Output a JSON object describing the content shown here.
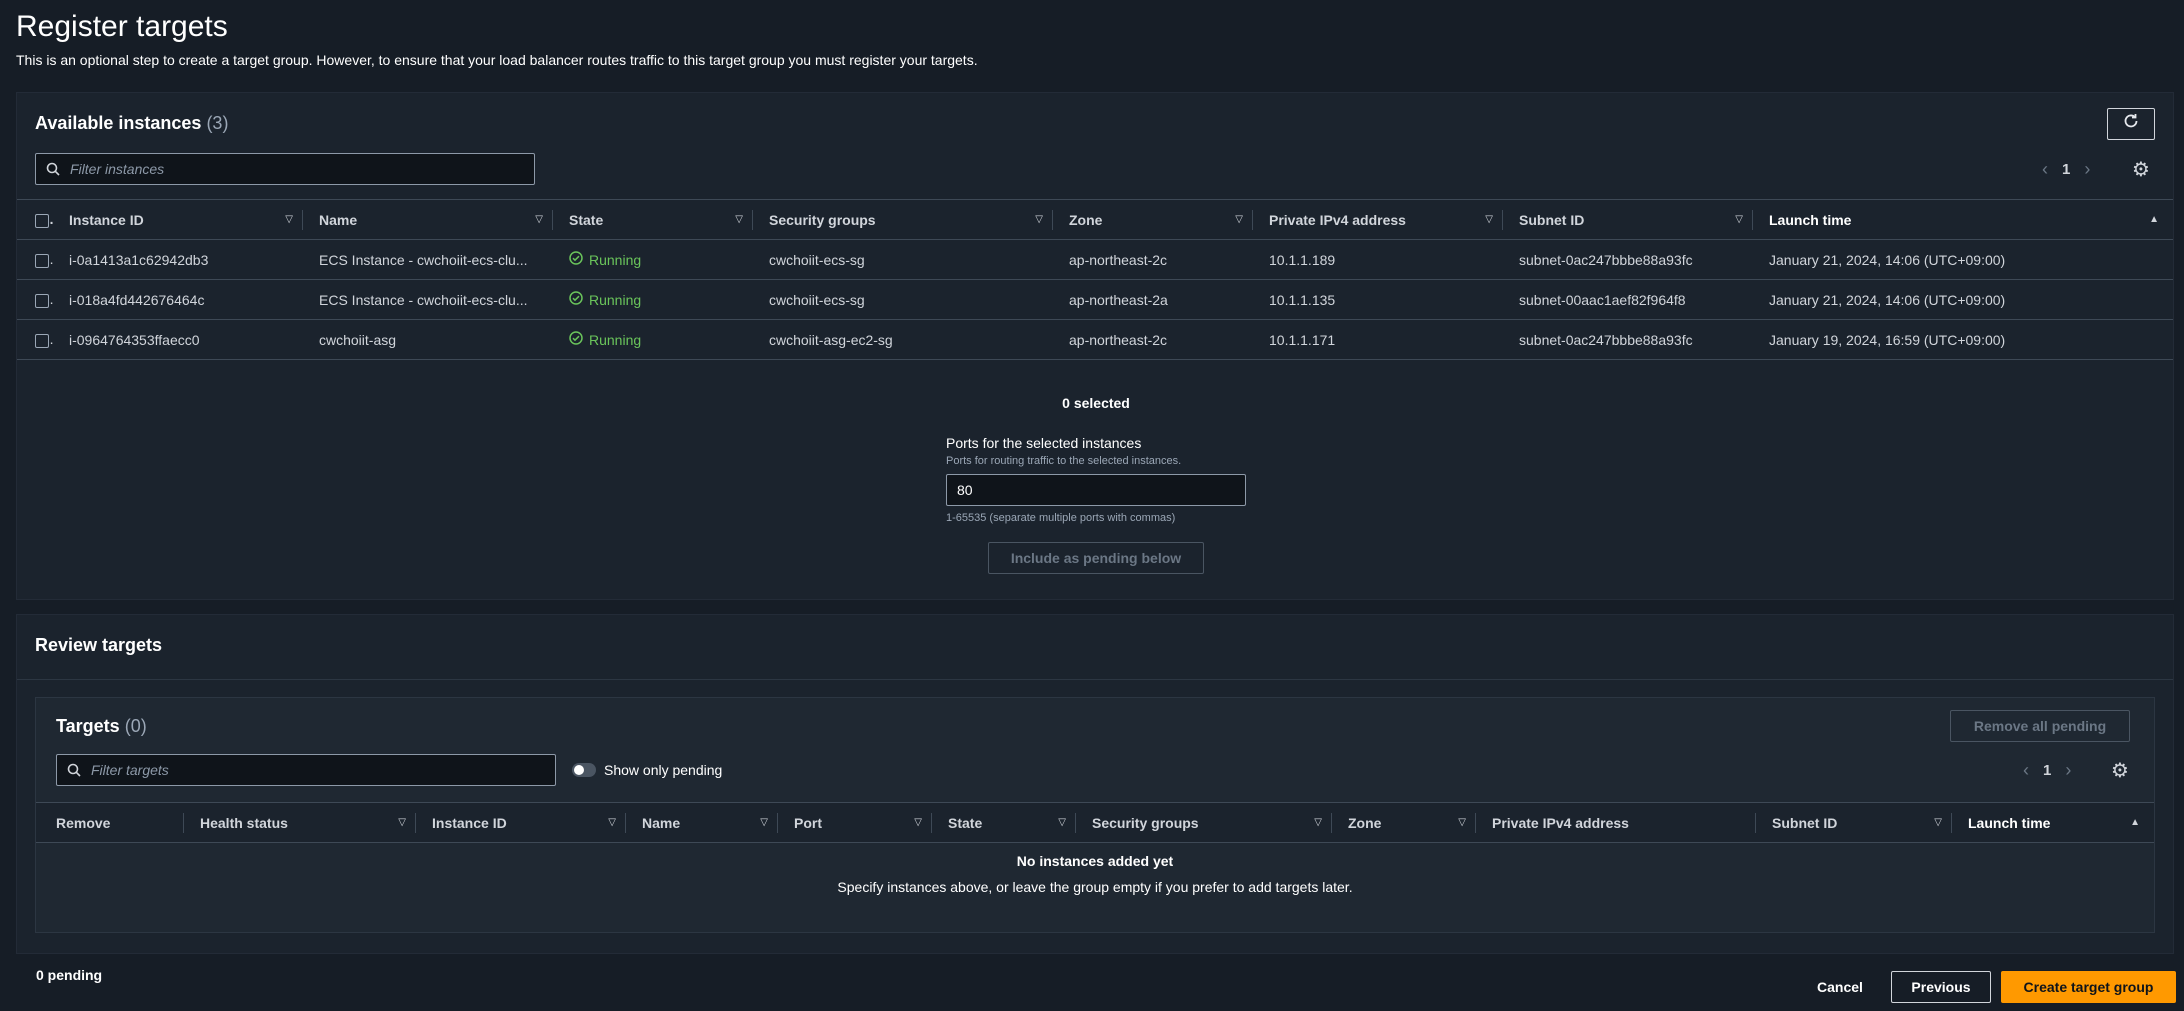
{
  "page": {
    "title": "Register targets",
    "description": "This is an optional step to create a target group. However, to ensure that your load balancer routes traffic to this target group you must register your targets."
  },
  "available": {
    "title": "Available instances",
    "count": "(3)",
    "filter_placeholder": "Filter instances",
    "page_number": "1",
    "columns": [
      "Instance ID",
      "Name",
      "State",
      "Security groups",
      "Zone",
      "Private IPv4 address",
      "Subnet ID",
      "Launch time"
    ],
    "rows": [
      {
        "id": "i-0a1413a1c62942db3",
        "name": "ECS Instance - cwchoiit-ecs-clu...",
        "state": "Running",
        "sg": "cwchoiit-ecs-sg",
        "zone": "ap-northeast-2c",
        "ip": "10.1.1.189",
        "subnet": "subnet-0ac247bbbe88a93fc",
        "launch": "January 21, 2024, 14:06 (UTC+09:00)"
      },
      {
        "id": "i-018a4fd442676464c",
        "name": "ECS Instance - cwchoiit-ecs-clu...",
        "state": "Running",
        "sg": "cwchoiit-ecs-sg",
        "zone": "ap-northeast-2a",
        "ip": "10.1.1.135",
        "subnet": "subnet-00aac1aef82f964f8",
        "launch": "January 21, 2024, 14:06 (UTC+09:00)"
      },
      {
        "id": "i-0964764353ffaecc0",
        "name": "cwchoiit-asg",
        "state": "Running",
        "sg": "cwchoiit-asg-ec2-sg",
        "zone": "ap-northeast-2c",
        "ip": "10.1.1.171",
        "subnet": "subnet-0ac247bbbe88a93fc",
        "launch": "January 19, 2024, 16:59 (UTC+09:00)"
      }
    ],
    "selected_text": "0 selected",
    "ports_label": "Ports for the selected instances",
    "ports_desc": "Ports for routing traffic to the selected instances.",
    "ports_value": "80",
    "ports_hint": "1-65535 (separate multiple ports with commas)",
    "include_button": "Include as pending below"
  },
  "review": {
    "title": "Review targets",
    "targets_title": "Targets",
    "targets_count": "(0)",
    "remove_all_button": "Remove all pending",
    "filter_placeholder": "Filter targets",
    "show_only_pending": "Show only pending",
    "page_number": "1",
    "columns": [
      "Remove",
      "Health status",
      "Instance ID",
      "Name",
      "Port",
      "State",
      "Security groups",
      "Zone",
      "Private IPv4 address",
      "Subnet ID",
      "Launch time"
    ],
    "empty_title": "No instances added yet",
    "empty_desc": "Specify instances above, or leave the group empty if you prefer to add targets later."
  },
  "footer": {
    "pending": "0 pending",
    "cancel": "Cancel",
    "previous": "Previous",
    "create": "Create target group"
  },
  "colors": {
    "accent": "#ff9900",
    "running": "#6ac55b",
    "background": "#161d26"
  }
}
